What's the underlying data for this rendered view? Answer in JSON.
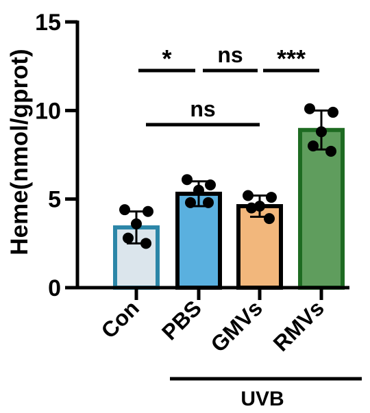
{
  "chart_data": {
    "type": "bar",
    "ylabel": "Heme(nmol/gprot)",
    "ylim": [
      0,
      15
    ],
    "yticks": [
      "0",
      "5",
      "10",
      "15"
    ],
    "categories": [
      "Con",
      "PBS",
      "GMVs",
      "RMVs"
    ],
    "group_label": "UVB",
    "values": [
      3.4,
      5.3,
      4.6,
      8.9
    ],
    "sd": [
      0.9,
      0.7,
      0.6,
      1.1
    ],
    "points": [
      [
        4.4,
        4.3,
        3.6,
        2.8,
        2.5
      ],
      [
        6.1,
        5.8,
        5.5,
        4.8,
        4.8
      ],
      [
        5.2,
        5.1,
        4.6,
        4.5,
        3.9
      ],
      [
        10.1,
        9.9,
        8.8,
        8.0,
        7.7
      ]
    ],
    "colors": {
      "fills": [
        "#dbe5ec",
        "#5ab0df",
        "#f2b77c",
        "#5f9d5d"
      ],
      "edges": [
        "#2c86a8",
        "#000000",
        "#000000",
        "#1e6b22"
      ]
    },
    "significance": [
      {
        "from": 0,
        "to": 1,
        "label": "*"
      },
      {
        "from": 1,
        "to": 2,
        "label": "ns"
      },
      {
        "from": 2,
        "to": 3,
        "label": "***"
      },
      {
        "from": 0,
        "to": 2,
        "label": "ns"
      }
    ]
  }
}
